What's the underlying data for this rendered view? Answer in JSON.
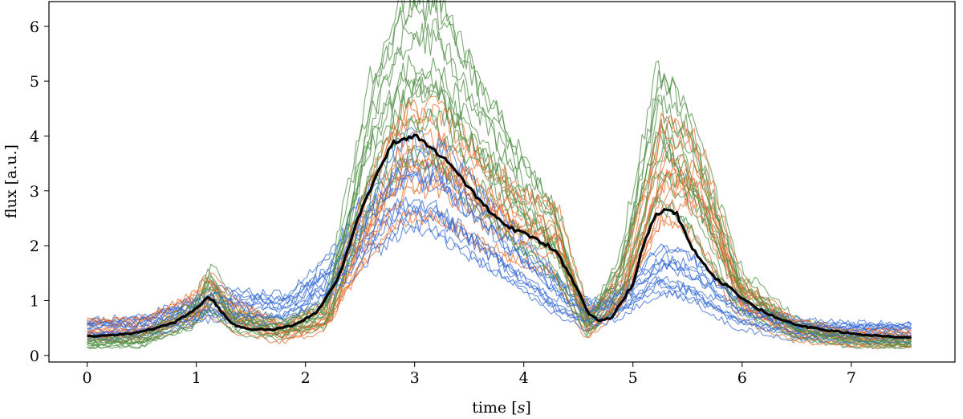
{
  "chart_data": {
    "type": "line",
    "xlabel": {
      "prefix": "time [",
      "var": "s",
      "suffix": "]"
    },
    "ylabel": "flux [a.u.]",
    "xlim": [
      -0.35,
      7.95
    ],
    "ylim": [
      -0.12,
      6.45
    ],
    "xticks": [
      0,
      1,
      2,
      3,
      4,
      5,
      6,
      7
    ],
    "yticks": [
      0,
      1,
      2,
      3,
      4,
      5,
      6
    ],
    "grid": false,
    "x_end": 7.55,
    "series_groups": [
      {
        "name": "blue",
        "color": "#2f66d6",
        "count": 13,
        "profile": {
          "x": [
            0,
            0.5,
            1.0,
            1.13,
            1.35,
            1.8,
            2.2,
            2.6,
            2.9,
            3.2,
            3.6,
            4.0,
            4.35,
            4.6,
            4.9,
            5.25,
            5.5,
            6.0,
            6.5,
            7.0,
            7.55
          ],
          "y": [
            0.5,
            0.55,
            0.85,
            0.95,
            0.9,
            0.85,
            1.4,
            2.5,
            3.1,
            3.0,
            2.3,
            1.6,
            1.0,
            0.75,
            1.0,
            1.55,
            1.4,
            0.75,
            0.5,
            0.45,
            0.45
          ]
        }
      },
      {
        "name": "orange",
        "color": "#e8692a",
        "count": 13,
        "profile": {
          "x": [
            0,
            0.5,
            1.0,
            1.13,
            1.35,
            1.8,
            2.2,
            2.6,
            2.9,
            3.2,
            3.6,
            4.0,
            4.3,
            4.6,
            4.9,
            5.3,
            5.6,
            6.0,
            6.5,
            7.0,
            7.55
          ],
          "y": [
            0.45,
            0.45,
            0.8,
            1.1,
            0.7,
            0.4,
            0.65,
            2.4,
            3.4,
            3.5,
            2.8,
            2.3,
            2.1,
            0.5,
            1.1,
            3.3,
            3.0,
            1.0,
            0.45,
            0.3,
            0.3
          ]
        }
      },
      {
        "name": "green",
        "color": "#4a8a40",
        "count": 14,
        "profile": {
          "x": [
            0,
            0.5,
            1.0,
            1.13,
            1.35,
            1.8,
            2.2,
            2.6,
            2.9,
            3.2,
            3.6,
            4.0,
            4.3,
            4.6,
            4.9,
            5.25,
            5.5,
            6.0,
            6.5,
            7.0,
            7.55
          ],
          "y": [
            0.2,
            0.25,
            0.75,
            1.25,
            0.6,
            0.45,
            0.75,
            3.8,
            5.1,
            5.2,
            3.9,
            2.8,
            2.1,
            0.5,
            1.4,
            4.1,
            3.5,
            1.15,
            0.45,
            0.25,
            0.2
          ]
        }
      }
    ],
    "mean_series": {
      "name": "mean",
      "color": "#000000",
      "x": [
        0,
        0.2,
        0.4,
        0.6,
        0.8,
        1.0,
        1.1,
        1.15,
        1.25,
        1.35,
        1.5,
        1.7,
        1.9,
        2.1,
        2.3,
        2.5,
        2.7,
        2.8,
        2.9,
        3.0,
        3.1,
        3.2,
        3.35,
        3.5,
        3.7,
        3.9,
        4.1,
        4.3,
        4.5,
        4.6,
        4.7,
        4.8,
        5.0,
        5.1,
        5.2,
        5.3,
        5.4,
        5.5,
        5.7,
        5.9,
        6.1,
        6.3,
        6.5,
        6.8,
        7.1,
        7.4,
        7.55
      ],
      "y": [
        0.35,
        0.36,
        0.4,
        0.48,
        0.6,
        0.85,
        1.05,
        1.0,
        0.75,
        0.55,
        0.47,
        0.47,
        0.55,
        0.78,
        1.4,
        2.6,
        3.5,
        3.88,
        3.92,
        4.02,
        3.85,
        3.7,
        3.45,
        3.05,
        2.6,
        2.3,
        2.15,
        1.9,
        1.15,
        0.75,
        0.63,
        0.68,
        1.3,
        2.05,
        2.55,
        2.68,
        2.6,
        2.1,
        1.5,
        1.2,
        0.9,
        0.7,
        0.55,
        0.45,
        0.38,
        0.34,
        0.33
      ]
    }
  }
}
